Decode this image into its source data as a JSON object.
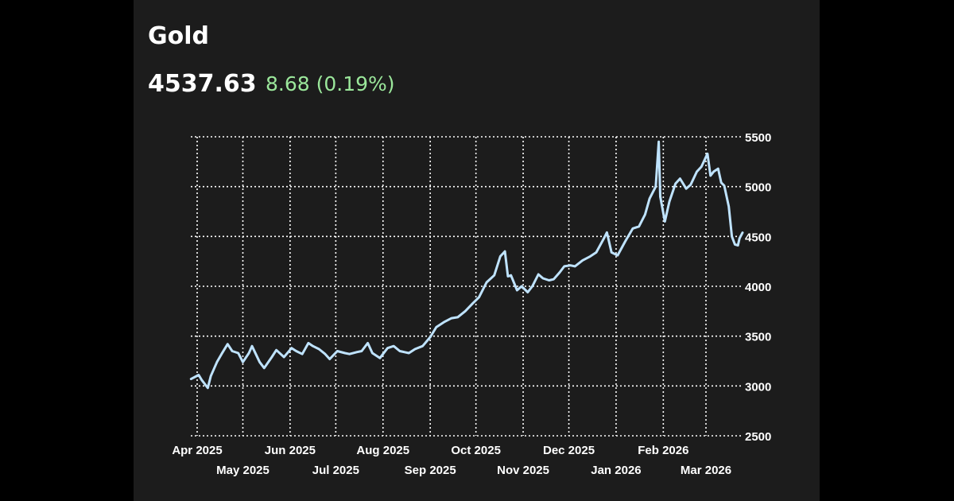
{
  "header": {
    "title": "Gold",
    "price": "4537.63",
    "change": "8.68 (0.19%)"
  },
  "colors": {
    "background": "#1c1c1c",
    "line": "#bfe3ff",
    "grid": "#ffffff",
    "change_positive": "#9be79b",
    "text": "#ffffff"
  },
  "chart_data": {
    "type": "line",
    "title": "Gold",
    "grid": true,
    "y_axis_position": "right",
    "ylim": [
      2500,
      5500
    ],
    "y_ticks": [
      "5500",
      "5000",
      "4500",
      "4000",
      "3500",
      "3000",
      "2500"
    ],
    "x_ticks": [
      {
        "label": "Apr 2025",
        "x": "2025-04-01"
      },
      {
        "label": "May 2025",
        "x": "2025-05-01"
      },
      {
        "label": "Jun 2025",
        "x": "2025-06-01"
      },
      {
        "label": "Jul 2025",
        "x": "2025-07-01"
      },
      {
        "label": "Aug 2025",
        "x": "2025-08-01"
      },
      {
        "label": "Sep 2025",
        "x": "2025-09-01"
      },
      {
        "label": "Oct 2025",
        "x": "2025-10-01"
      },
      {
        "label": "Nov 2025",
        "x": "2025-11-01"
      },
      {
        "label": "Dec 2025",
        "x": "2025-12-01"
      },
      {
        "label": "Jan 2026",
        "x": "2026-01-01"
      },
      {
        "label": "Feb 2026",
        "x": "2026-02-01"
      },
      {
        "label": "Mar 2026",
        "x": "2026-03-01"
      }
    ],
    "series": [
      {
        "points": [
          [
            "2025-03-28",
            3070
          ],
          [
            "2025-04-02",
            3110
          ],
          [
            "2025-04-04",
            3060
          ],
          [
            "2025-04-08",
            2980
          ],
          [
            "2025-04-10",
            3100
          ],
          [
            "2025-04-14",
            3240
          ],
          [
            "2025-04-17",
            3320
          ],
          [
            "2025-04-21",
            3420
          ],
          [
            "2025-04-24",
            3350
          ],
          [
            "2025-04-28",
            3330
          ],
          [
            "2025-05-01",
            3240
          ],
          [
            "2025-05-05",
            3330
          ],
          [
            "2025-05-07",
            3400
          ],
          [
            "2025-05-12",
            3240
          ],
          [
            "2025-05-15",
            3180
          ],
          [
            "2025-05-20",
            3290
          ],
          [
            "2025-05-23",
            3360
          ],
          [
            "2025-05-28",
            3290
          ],
          [
            "2025-06-02",
            3380
          ],
          [
            "2025-06-05",
            3350
          ],
          [
            "2025-06-09",
            3320
          ],
          [
            "2025-06-13",
            3430
          ],
          [
            "2025-06-16",
            3400
          ],
          [
            "2025-06-20",
            3370
          ],
          [
            "2025-06-24",
            3320
          ],
          [
            "2025-06-27",
            3270
          ],
          [
            "2025-07-02",
            3350
          ],
          [
            "2025-07-07",
            3330
          ],
          [
            "2025-07-10",
            3320
          ],
          [
            "2025-07-15",
            3340
          ],
          [
            "2025-07-18",
            3350
          ],
          [
            "2025-07-22",
            3430
          ],
          [
            "2025-07-25",
            3330
          ],
          [
            "2025-07-30",
            3280
          ],
          [
            "2025-08-04",
            3380
          ],
          [
            "2025-08-08",
            3400
          ],
          [
            "2025-08-12",
            3350
          ],
          [
            "2025-08-18",
            3330
          ],
          [
            "2025-08-22",
            3370
          ],
          [
            "2025-08-27",
            3400
          ],
          [
            "2025-09-01",
            3490
          ],
          [
            "2025-09-05",
            3590
          ],
          [
            "2025-09-10",
            3640
          ],
          [
            "2025-09-15",
            3680
          ],
          [
            "2025-09-19",
            3690
          ],
          [
            "2025-09-24",
            3750
          ],
          [
            "2025-09-29",
            3830
          ],
          [
            "2025-10-03",
            3890
          ],
          [
            "2025-10-08",
            4040
          ],
          [
            "2025-10-13",
            4110
          ],
          [
            "2025-10-17",
            4300
          ],
          [
            "2025-10-20",
            4350
          ],
          [
            "2025-10-22",
            4100
          ],
          [
            "2025-10-24",
            4110
          ],
          [
            "2025-10-28",
            3960
          ],
          [
            "2025-10-31",
            4000
          ],
          [
            "2025-11-04",
            3940
          ],
          [
            "2025-11-07",
            4000
          ],
          [
            "2025-11-11",
            4120
          ],
          [
            "2025-11-14",
            4080
          ],
          [
            "2025-11-18",
            4060
          ],
          [
            "2025-11-21",
            4070
          ],
          [
            "2025-11-25",
            4140
          ],
          [
            "2025-11-28",
            4200
          ],
          [
            "2025-12-02",
            4210
          ],
          [
            "2025-12-05",
            4200
          ],
          [
            "2025-12-10",
            4260
          ],
          [
            "2025-12-15",
            4300
          ],
          [
            "2025-12-19",
            4340
          ],
          [
            "2025-12-24",
            4480
          ],
          [
            "2025-12-26",
            4540
          ],
          [
            "2025-12-29",
            4340
          ],
          [
            "2026-01-02",
            4310
          ],
          [
            "2026-01-07",
            4450
          ],
          [
            "2026-01-12",
            4580
          ],
          [
            "2026-01-16",
            4600
          ],
          [
            "2026-01-20",
            4720
          ],
          [
            "2026-01-23",
            4880
          ],
          [
            "2026-01-27",
            5000
          ],
          [
            "2026-01-29",
            5450
          ],
          [
            "2026-01-30",
            4900
          ],
          [
            "2026-02-02",
            4650
          ],
          [
            "2026-02-05",
            4850
          ],
          [
            "2026-02-09",
            5030
          ],
          [
            "2026-02-12",
            5080
          ],
          [
            "2026-02-16",
            4980
          ],
          [
            "2026-02-19",
            5020
          ],
          [
            "2026-02-23",
            5150
          ],
          [
            "2026-02-26",
            5200
          ],
          [
            "2026-03-02",
            5330
          ],
          [
            "2026-03-04",
            5110
          ],
          [
            "2026-03-06",
            5150
          ],
          [
            "2026-03-09",
            5180
          ],
          [
            "2026-03-11",
            5040
          ],
          [
            "2026-03-13",
            5010
          ],
          [
            "2026-03-16",
            4800
          ],
          [
            "2026-03-18",
            4500
          ],
          [
            "2026-03-20",
            4420
          ],
          [
            "2026-03-22",
            4410
          ],
          [
            "2026-03-23",
            4480
          ],
          [
            "2026-03-25",
            4537.63
          ]
        ]
      }
    ]
  }
}
